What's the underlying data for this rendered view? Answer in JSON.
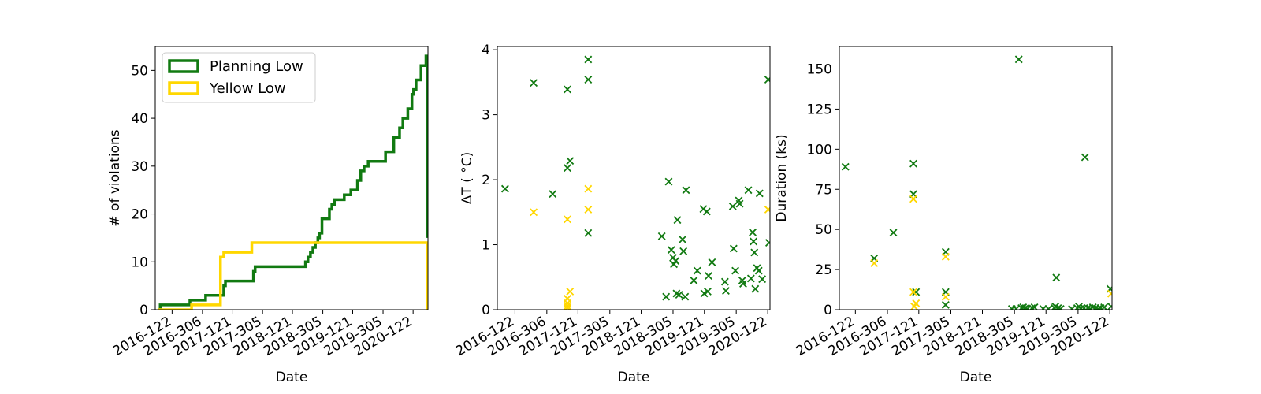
{
  "chart_data": [
    {
      "type": "line",
      "xlabel": "Date",
      "ylabel": "# of violations",
      "x_ticks": [
        "2016-122",
        "2016-306",
        "2017-121",
        "2017-305",
        "2018-121",
        "2018-305",
        "2019-121",
        "2019-305",
        "2020-122"
      ],
      "y_ticks": [
        "0",
        "10",
        "20",
        "30",
        "40",
        "50"
      ],
      "ylim": [
        0,
        55
      ],
      "legend_position": "upper-left",
      "series": [
        {
          "name": "Planning Low",
          "color": "#117a11",
          "step_points": [
            [
              "2016-035",
              0
            ],
            [
              "2016-050",
              1
            ],
            [
              "2016-230",
              2
            ],
            [
              "2016-325",
              3
            ],
            [
              "2017-070",
              5
            ],
            [
              "2017-080",
              6
            ],
            [
              "2017-250",
              8
            ],
            [
              "2017-260",
              9
            ],
            [
              "2018-200",
              10
            ],
            [
              "2018-215",
              11
            ],
            [
              "2018-230",
              12
            ],
            [
              "2018-245",
              13
            ],
            [
              "2018-260",
              14
            ],
            [
              "2018-275",
              15
            ],
            [
              "2018-285",
              16
            ],
            [
              "2018-300",
              19
            ],
            [
              "2018-345",
              21
            ],
            [
              "2018-360",
              22
            ],
            [
              "2019-010",
              23
            ],
            [
              "2019-070",
              24
            ],
            [
              "2019-110",
              25
            ],
            [
              "2019-150",
              27
            ],
            [
              "2019-170",
              29
            ],
            [
              "2019-190",
              30
            ],
            [
              "2019-215",
              31
            ],
            [
              "2019-320",
              33
            ],
            [
              "2020-005",
              36
            ],
            [
              "2020-040",
              38
            ],
            [
              "2020-060",
              40
            ],
            [
              "2020-090",
              42
            ],
            [
              "2020-115",
              45
            ],
            [
              "2020-125",
              46
            ],
            [
              "2020-140",
              48
            ],
            [
              "2020-170",
              51
            ],
            [
              "2020-200",
              53
            ],
            [
              "2020-210",
              15
            ]
          ]
        },
        {
          "name": "Yellow Low",
          "color": "#ffd700",
          "step_points": [
            [
              "2016-035",
              0
            ],
            [
              "2016-240",
              1
            ],
            [
              "2017-050",
              11
            ],
            [
              "2017-070",
              12
            ],
            [
              "2017-240",
              14
            ],
            [
              "2020-210",
              0
            ]
          ]
        }
      ]
    },
    {
      "type": "scatter",
      "xlabel": "Date",
      "ylabel": "ΔT ( °C)",
      "x_ticks": [
        "2016-122",
        "2016-306",
        "2017-121",
        "2017-305",
        "2018-121",
        "2018-305",
        "2019-121",
        "2019-305",
        "2020-122"
      ],
      "y_ticks": [
        "0",
        "1",
        "2",
        "3",
        "4"
      ],
      "ylim": [
        0,
        4.05
      ],
      "series": [
        {
          "color": "#117a11",
          "points": [
            [
              "2016-065",
              1.86
            ],
            [
              "2016-230",
              3.49
            ],
            [
              "2016-340",
              1.78
            ],
            [
              "2017-060",
              3.39
            ],
            [
              "2017-060",
              2.18
            ],
            [
              "2017-075",
              2.29
            ],
            [
              "2017-180",
              3.85
            ],
            [
              "2017-180",
              3.54
            ],
            [
              "2017-180",
              1.18
            ],
            [
              "2018-240",
              1.13
            ],
            [
              "2018-265",
              0.2
            ],
            [
              "2018-280",
              1.97
            ],
            [
              "2018-295",
              0.92
            ],
            [
              "2018-305",
              0.8
            ],
            [
              "2018-310",
              0.7
            ],
            [
              "2018-320",
              0.75
            ],
            [
              "2018-325",
              0.25
            ],
            [
              "2018-330",
              1.38
            ],
            [
              "2018-340",
              0.23
            ],
            [
              "2018-360",
              1.08
            ],
            [
              "2018-365",
              0.9
            ],
            [
              "2019-010",
              0.2
            ],
            [
              "2019-015",
              1.84
            ],
            [
              "2019-060",
              0.45
            ],
            [
              "2019-080",
              0.6
            ],
            [
              "2019-115",
              1.55
            ],
            [
              "2019-120",
              0.25
            ],
            [
              "2019-135",
              1.51
            ],
            [
              "2019-140",
              0.28
            ],
            [
              "2019-145",
              0.52
            ],
            [
              "2019-165",
              0.73
            ],
            [
              "2019-240",
              0.43
            ],
            [
              "2019-245",
              0.29
            ],
            [
              "2019-285",
              1.59
            ],
            [
              "2019-290",
              0.94
            ],
            [
              "2019-300",
              0.6
            ],
            [
              "2019-320",
              1.68
            ],
            [
              "2019-325",
              1.63
            ],
            [
              "2019-340",
              0.45
            ],
            [
              "2019-345",
              0.4
            ],
            [
              "2020-010",
              1.84
            ],
            [
              "2020-025",
              0.48
            ],
            [
              "2020-035",
              1.19
            ],
            [
              "2020-040",
              1.05
            ],
            [
              "2020-045",
              0.88
            ],
            [
              "2020-050",
              0.32
            ],
            [
              "2020-060",
              0.64
            ],
            [
              "2020-070",
              0.6
            ],
            [
              "2020-075",
              1.79
            ],
            [
              "2020-090",
              0.47
            ],
            [
              "2020-125",
              3.54
            ],
            [
              "2020-130",
              1.03
            ]
          ]
        },
        {
          "color": "#ffd700",
          "points": [
            [
              "2016-230",
              1.5
            ],
            [
              "2017-060",
              1.39
            ],
            [
              "2017-060",
              0.17
            ],
            [
              "2017-060",
              0.1
            ],
            [
              "2017-060",
              0.06
            ],
            [
              "2017-060",
              0.03
            ],
            [
              "2017-075",
              0.28
            ],
            [
              "2017-180",
              1.86
            ],
            [
              "2017-180",
              1.54
            ],
            [
              "2020-125",
              1.54
            ]
          ]
        }
      ]
    },
    {
      "type": "scatter",
      "xlabel": "Date",
      "ylabel": "Duration (ks)",
      "x_ticks": [
        "2016-122",
        "2016-306",
        "2017-121",
        "2017-305",
        "2018-121",
        "2018-305",
        "2019-121",
        "2019-305",
        "2020-122"
      ],
      "y_ticks": [
        "0",
        "25",
        "50",
        "75",
        "100",
        "125",
        "150"
      ],
      "ylim": [
        0,
        164
      ],
      "series": [
        {
          "color": "#117a11",
          "points": [
            [
              "2016-065",
              89
            ],
            [
              "2016-230",
              32
            ],
            [
              "2016-340",
              48
            ],
            [
              "2017-090",
              91
            ],
            [
              "2017-090",
              72
            ],
            [
              "2017-105",
              11
            ],
            [
              "2017-275",
              36
            ],
            [
              "2017-275",
              11
            ],
            [
              "2017-275",
              3
            ],
            [
              "2018-290",
              0.5
            ],
            [
              "2018-315",
              0.5
            ],
            [
              "2018-330",
              156
            ],
            [
              "2018-345",
              1
            ],
            [
              "2018-355",
              1.5
            ],
            [
              "2018-362",
              0.5
            ],
            [
              "2019-005",
              1
            ],
            [
              "2019-015",
              0.5
            ],
            [
              "2019-040",
              1
            ],
            [
              "2019-055",
              1.5
            ],
            [
              "2019-105",
              0.5
            ],
            [
              "2019-135",
              0.5
            ],
            [
              "2019-170",
              1
            ],
            [
              "2019-175",
              2
            ],
            [
              "2019-180",
              20
            ],
            [
              "2019-190",
              1
            ],
            [
              "2019-205",
              0.5
            ],
            [
              "2019-270",
              0.5
            ],
            [
              "2019-300",
              1
            ],
            [
              "2019-310",
              2
            ],
            [
              "2019-320",
              0.5
            ],
            [
              "2019-340",
              1
            ],
            [
              "2019-345",
              95
            ],
            [
              "2019-360",
              1
            ],
            [
              "2020-010",
              0.5
            ],
            [
              "2020-025",
              1.5
            ],
            [
              "2020-040",
              1
            ],
            [
              "2020-055",
              0.5
            ],
            [
              "2020-070",
              1
            ],
            [
              "2020-090",
              1.5
            ],
            [
              "2020-125",
              13
            ],
            [
              "2020-130",
              2
            ]
          ]
        },
        {
          "color": "#ffd700",
          "points": [
            [
              "2016-230",
              29
            ],
            [
              "2017-090",
              69
            ],
            [
              "2017-090",
              11
            ],
            [
              "2017-095",
              2
            ],
            [
              "2017-105",
              4
            ],
            [
              "2017-275",
              33
            ],
            [
              "2017-275",
              8
            ],
            [
              "2020-130",
              10
            ]
          ]
        }
      ]
    }
  ]
}
